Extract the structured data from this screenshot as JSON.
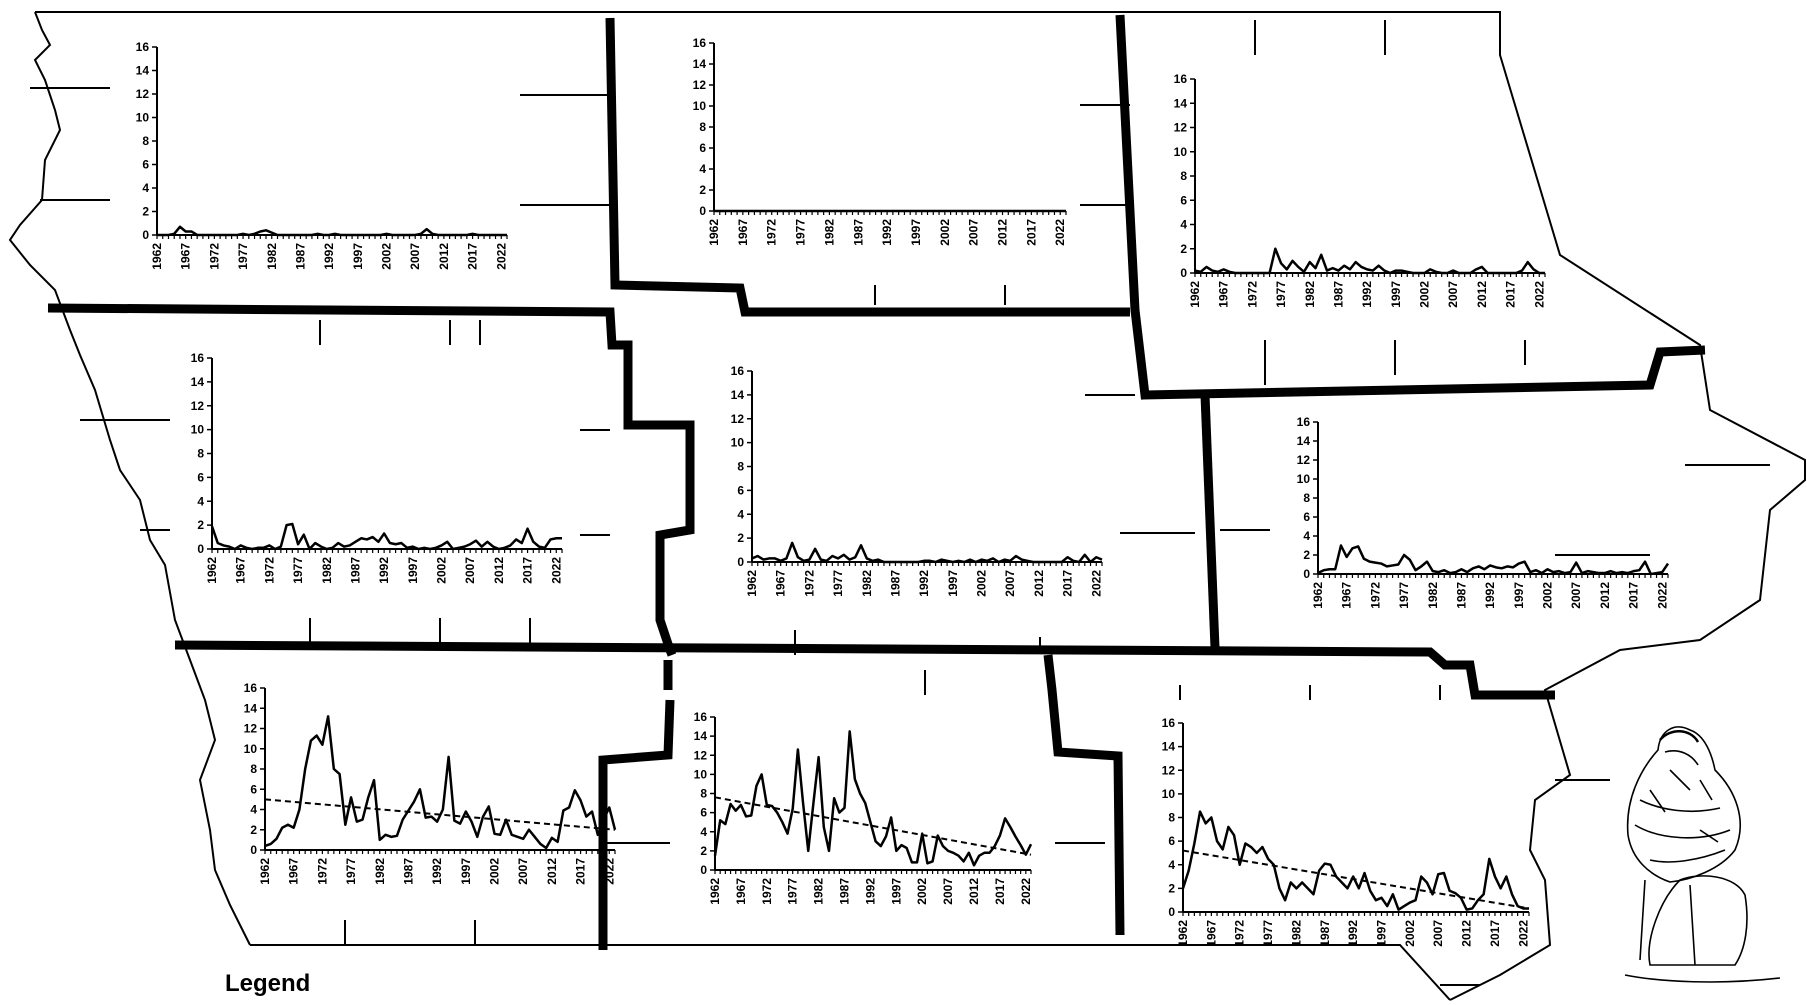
{
  "legend": {
    "label": "Legend"
  },
  "chart_data": [
    {
      "id": "northwest",
      "type": "line",
      "xlim": [
        1962,
        2023
      ],
      "ylim": [
        0,
        16
      ],
      "yticks": [
        0,
        2,
        4,
        6,
        8,
        10,
        12,
        14,
        16
      ],
      "xticks": [
        "1962",
        "1967",
        "1972",
        "1977",
        "1982",
        "1987",
        "1992",
        "1997",
        "2002",
        "2007",
        "2012",
        "2017",
        "2022"
      ],
      "x": [
        1962,
        1963,
        1964,
        1965,
        1966,
        1967,
        1968,
        1969,
        1970,
        1971,
        1972,
        1973,
        1974,
        1975,
        1976,
        1977,
        1978,
        1979,
        1980,
        1981,
        1982,
        1983,
        1984,
        1985,
        1986,
        1987,
        1988,
        1989,
        1990,
        1991,
        1992,
        1993,
        1994,
        1995,
        1996,
        1997,
        1998,
        1999,
        2000,
        2001,
        2002,
        2003,
        2004,
        2005,
        2006,
        2007,
        2008,
        2009,
        2010,
        2011,
        2012,
        2013,
        2014,
        2015,
        2016,
        2017,
        2018,
        2019,
        2020,
        2021,
        2022,
        2023
      ],
      "values": [
        0,
        0,
        0,
        0.1,
        0.7,
        0.3,
        0.3,
        0,
        0,
        0,
        0,
        0,
        0,
        0,
        0,
        0.1,
        0,
        0.1,
        0.3,
        0.4,
        0.2,
        0,
        0,
        0,
        0,
        0,
        0,
        0,
        0.1,
        0,
        0,
        0.1,
        0,
        0,
        0,
        0,
        0,
        0,
        0,
        0,
        0.1,
        0,
        0,
        0,
        0,
        0,
        0.1,
        0.5,
        0.1,
        0,
        0,
        0,
        0,
        0,
        0,
        0.1,
        0,
        0,
        0,
        0,
        0,
        0
      ]
    },
    {
      "id": "north-central",
      "type": "line",
      "xlim": [
        1962,
        2023
      ],
      "ylim": [
        0,
        16
      ],
      "yticks": [
        0,
        2,
        4,
        6,
        8,
        10,
        12,
        14,
        16
      ],
      "xticks": [
        "1962",
        "1967",
        "1972",
        "1977",
        "1982",
        "1987",
        "1992",
        "1997",
        "2002",
        "2007",
        "2012",
        "2017",
        "2022"
      ],
      "x": [
        1962,
        2023
      ],
      "values": [
        0,
        0
      ]
    },
    {
      "id": "northeast",
      "type": "line",
      "xlim": [
        1962,
        2023
      ],
      "ylim": [
        0,
        16
      ],
      "yticks": [
        0,
        2,
        4,
        6,
        8,
        10,
        12,
        14,
        16
      ],
      "xticks": [
        "1962",
        "1967",
        "1972",
        "1977",
        "1982",
        "1987",
        "1992",
        "1997",
        "2002",
        "2007",
        "2012",
        "2017",
        "2022"
      ],
      "x": [
        1962,
        1963,
        1964,
        1965,
        1966,
        1967,
        1968,
        1969,
        1970,
        1971,
        1972,
        1973,
        1974,
        1975,
        1976,
        1977,
        1978,
        1979,
        1980,
        1981,
        1982,
        1983,
        1984,
        1985,
        1986,
        1987,
        1988,
        1989,
        1990,
        1991,
        1992,
        1993,
        1994,
        1995,
        1996,
        1997,
        1998,
        1999,
        2000,
        2001,
        2002,
        2003,
        2004,
        2005,
        2006,
        2007,
        2008,
        2009,
        2010,
        2011,
        2012,
        2013,
        2014,
        2015,
        2016,
        2017,
        2018,
        2019,
        2020,
        2021,
        2022,
        2023
      ],
      "values": [
        0.2,
        0.1,
        0.5,
        0.2,
        0.1,
        0.3,
        0.1,
        0,
        0,
        0,
        0,
        0,
        0,
        0,
        2.0,
        0.8,
        0.3,
        1.0,
        0.5,
        0.1,
        0.9,
        0.4,
        1.5,
        0.2,
        0.4,
        0.2,
        0.6,
        0.3,
        0.9,
        0.5,
        0.3,
        0.2,
        0.6,
        0.2,
        0,
        0.2,
        0.2,
        0.1,
        0,
        0,
        0,
        0.3,
        0.1,
        0,
        0,
        0.2,
        0,
        0,
        0,
        0.3,
        0.5,
        0,
        0,
        0,
        0,
        0,
        0,
        0.2,
        0.9,
        0.3,
        0,
        0
      ]
    },
    {
      "id": "west-central",
      "type": "line",
      "xlim": [
        1962,
        2023
      ],
      "ylim": [
        0,
        16
      ],
      "yticks": [
        0,
        2,
        4,
        6,
        8,
        10,
        12,
        14,
        16
      ],
      "xticks": [
        "1962",
        "1967",
        "1972",
        "1977",
        "1982",
        "1987",
        "1992",
        "1997",
        "2002",
        "2007",
        "2012",
        "2017",
        "2022"
      ],
      "x": [
        1962,
        1963,
        1964,
        1965,
        1966,
        1967,
        1968,
        1969,
        1970,
        1971,
        1972,
        1973,
        1974,
        1975,
        1976,
        1977,
        1978,
        1979,
        1980,
        1981,
        1982,
        1983,
        1984,
        1985,
        1986,
        1987,
        1988,
        1989,
        1990,
        1991,
        1992,
        1993,
        1994,
        1995,
        1996,
        1997,
        1998,
        1999,
        2000,
        2001,
        2002,
        2003,
        2004,
        2005,
        2006,
        2007,
        2008,
        2009,
        2010,
        2011,
        2012,
        2013,
        2014,
        2015,
        2016,
        2017,
        2018,
        2019,
        2020,
        2021,
        2022,
        2023
      ],
      "values": [
        1.9,
        0.5,
        0.3,
        0.2,
        0,
        0.3,
        0.1,
        0,
        0.1,
        0.1,
        0.3,
        0,
        0.2,
        2.0,
        2.1,
        0.4,
        1.2,
        0,
        0.5,
        0.2,
        0,
        0.1,
        0.5,
        0.2,
        0.3,
        0.6,
        0.9,
        0.8,
        1.0,
        0.6,
        1.3,
        0.5,
        0.4,
        0.5,
        0.1,
        0.2,
        0,
        0.1,
        0,
        0.1,
        0.3,
        0.6,
        0,
        0.1,
        0.2,
        0.4,
        0.7,
        0.2,
        0.6,
        0.2,
        0,
        0.1,
        0.3,
        0.8,
        0.5,
        1.7,
        0.6,
        0.2,
        0.1,
        0.8,
        0.9,
        0.9
      ]
    },
    {
      "id": "central",
      "type": "line",
      "xlim": [
        1962,
        2023
      ],
      "ylim": [
        0,
        16
      ],
      "yticks": [
        0,
        2,
        4,
        6,
        8,
        10,
        12,
        14,
        16
      ],
      "xticks": [
        "1962",
        "1967",
        "1972",
        "1977",
        "1982",
        "1987",
        "1992",
        "1997",
        "2002",
        "2007",
        "2012",
        "2017",
        "2022"
      ],
      "x": [
        1962,
        1963,
        1964,
        1965,
        1966,
        1967,
        1968,
        1969,
        1970,
        1971,
        1972,
        1973,
        1974,
        1975,
        1976,
        1977,
        1978,
        1979,
        1980,
        1981,
        1982,
        1983,
        1984,
        1985,
        1986,
        1987,
        1988,
        1989,
        1990,
        1991,
        1992,
        1993,
        1994,
        1995,
        1996,
        1997,
        1998,
        1999,
        2000,
        2001,
        2002,
        2003,
        2004,
        2005,
        2006,
        2007,
        2008,
        2009,
        2010,
        2011,
        2012,
        2013,
        2014,
        2015,
        2016,
        2017,
        2018,
        2019,
        2020,
        2021,
        2022,
        2023
      ],
      "values": [
        0.3,
        0.5,
        0.2,
        0.3,
        0.3,
        0.1,
        0.3,
        1.6,
        0.4,
        0.1,
        0.2,
        1.1,
        0.2,
        0.1,
        0.5,
        0.3,
        0.6,
        0.2,
        0.4,
        1.4,
        0.3,
        0.1,
        0.2,
        0,
        0,
        0,
        0,
        0,
        0,
        0,
        0.1,
        0.1,
        0,
        0.2,
        0.1,
        0,
        0.1,
        0,
        0.2,
        0,
        0.2,
        0.1,
        0.3,
        0,
        0.2,
        0.1,
        0.5,
        0.2,
        0.1,
        0,
        0,
        0,
        0,
        0,
        0,
        0.4,
        0.1,
        0,
        0.6,
        0,
        0.4,
        0.2
      ]
    },
    {
      "id": "east-central",
      "type": "line",
      "xlim": [
        1962,
        2023
      ],
      "ylim": [
        0,
        16
      ],
      "yticks": [
        0,
        2,
        4,
        6,
        8,
        10,
        12,
        14,
        16
      ],
      "xticks": [
        "1962",
        "1967",
        "1972",
        "1977",
        "1982",
        "1987",
        "1992",
        "1997",
        "2002",
        "2007",
        "2012",
        "2017",
        "2022"
      ],
      "x": [
        1962,
        1963,
        1964,
        1965,
        1966,
        1967,
        1968,
        1969,
        1970,
        1971,
        1972,
        1973,
        1974,
        1975,
        1976,
        1977,
        1978,
        1979,
        1980,
        1981,
        1982,
        1983,
        1984,
        1985,
        1986,
        1987,
        1988,
        1989,
        1990,
        1991,
        1992,
        1993,
        1994,
        1995,
        1996,
        1997,
        1998,
        1999,
        2000,
        2001,
        2002,
        2003,
        2004,
        2005,
        2006,
        2007,
        2008,
        2009,
        2010,
        2011,
        2012,
        2013,
        2014,
        2015,
        2016,
        2017,
        2018,
        2019,
        2020,
        2021,
        2022,
        2023
      ],
      "values": [
        0.1,
        0.4,
        0.5,
        0.5,
        3.0,
        1.8,
        2.7,
        2.9,
        1.6,
        1.3,
        1.2,
        1.1,
        0.8,
        0.9,
        1.0,
        2.0,
        1.5,
        0.4,
        0.8,
        1.3,
        0.3,
        0.2,
        0.4,
        0.1,
        0.2,
        0.5,
        0.2,
        0.6,
        0.8,
        0.5,
        0.9,
        0.7,
        0.6,
        0.8,
        0.7,
        1.1,
        1.3,
        0.2,
        0.4,
        0.1,
        0.5,
        0.2,
        0.3,
        0.1,
        0.2,
        1.2,
        0.1,
        0.3,
        0.2,
        0.1,
        0.1,
        0.3,
        0.1,
        0.2,
        0.1,
        0.3,
        0.4,
        1.3,
        0,
        0.1,
        0.2,
        1.1
      ]
    },
    {
      "id": "southwest",
      "type": "line",
      "xlim": [
        1962,
        2023
      ],
      "ylim": [
        0,
        16
      ],
      "yticks": [
        0,
        2,
        4,
        6,
        8,
        10,
        12,
        14,
        16
      ],
      "xticks": [
        "1962",
        "1967",
        "1972",
        "1977",
        "1982",
        "1987",
        "1992",
        "1997",
        "2002",
        "2007",
        "2012",
        "2017",
        "2022"
      ],
      "x": [
        1962,
        1963,
        1964,
        1965,
        1966,
        1967,
        1968,
        1969,
        1970,
        1971,
        1972,
        1973,
        1974,
        1975,
        1976,
        1977,
        1978,
        1979,
        1980,
        1981,
        1982,
        1983,
        1984,
        1985,
        1986,
        1987,
        1988,
        1989,
        1990,
        1991,
        1992,
        1993,
        1994,
        1995,
        1996,
        1997,
        1998,
        1999,
        2000,
        2001,
        2002,
        2003,
        2004,
        2005,
        2006,
        2007,
        2008,
        2009,
        2010,
        2011,
        2012,
        2013,
        2014,
        2015,
        2016,
        2017,
        2018,
        2019,
        2020,
        2021,
        2022,
        2023
      ],
      "values": [
        0.4,
        0.6,
        1.1,
        2.2,
        2.5,
        2.2,
        4.0,
        8.0,
        10.8,
        11.3,
        10.4,
        13.2,
        8.0,
        7.5,
        2.5,
        5.2,
        2.8,
        3.0,
        5.2,
        6.9,
        1.0,
        1.5,
        1.3,
        1.4,
        3.0,
        3.9,
        4.8,
        6.0,
        3.2,
        3.3,
        2.8,
        4.0,
        9.2,
        2.9,
        2.6,
        3.8,
        2.8,
        1.3,
        3.3,
        4.3,
        1.6,
        1.5,
        3.0,
        1.5,
        1.3,
        1.1,
        2.0,
        1.3,
        0.6,
        0.2,
        1.2,
        0.8,
        3.9,
        4.2,
        5.9,
        4.9,
        3.3,
        3.8,
        1.5,
        3.0,
        4.2,
        2.0
      ],
      "trend": {
        "style": "dashed",
        "values": [
          5.0,
          2.0
        ]
      }
    },
    {
      "id": "south-central",
      "type": "line",
      "xlim": [
        1962,
        2023
      ],
      "ylim": [
        0,
        16
      ],
      "yticks": [
        0,
        2,
        4,
        6,
        8,
        10,
        12,
        14,
        16
      ],
      "xticks": [
        "1962",
        "1967",
        "1972",
        "1977",
        "1982",
        "1987",
        "1992",
        "1997",
        "2002",
        "2007",
        "2012",
        "2017",
        "2022"
      ],
      "x": [
        1962,
        1963,
        1964,
        1965,
        1966,
        1967,
        1968,
        1969,
        1970,
        1971,
        1972,
        1973,
        1974,
        1975,
        1976,
        1977,
        1978,
        1979,
        1980,
        1981,
        1982,
        1983,
        1984,
        1985,
        1986,
        1987,
        1988,
        1989,
        1990,
        1991,
        1992,
        1993,
        1994,
        1995,
        1996,
        1997,
        1998,
        1999,
        2000,
        2001,
        2002,
        2003,
        2004,
        2005,
        2006,
        2007,
        2008,
        2009,
        2010,
        2011,
        2012,
        2013,
        2014,
        2015,
        2016,
        2017,
        2018,
        2019,
        2020,
        2021,
        2022,
        2023
      ],
      "values": [
        1.5,
        5.2,
        4.8,
        6.9,
        6.2,
        6.8,
        5.6,
        5.7,
        8.8,
        10.0,
        6.8,
        6.7,
        6.0,
        5.0,
        3.8,
        6.4,
        12.6,
        7.0,
        2.0,
        7.0,
        11.8,
        4.5,
        2.0,
        7.5,
        6.0,
        6.5,
        14.5,
        9.5,
        8.0,
        7.0,
        5.0,
        3.0,
        2.5,
        3.5,
        5.5,
        2.0,
        2.6,
        2.3,
        0.8,
        0.8,
        3.8,
        0.7,
        0.9,
        3.6,
        2.5,
        2.0,
        1.8,
        1.5,
        0.9,
        1.8,
        0.5,
        1.5,
        1.8,
        1.8,
        2.5,
        3.6,
        5.4,
        4.5,
        3.5,
        2.6,
        1.6,
        2.7
      ],
      "trend": {
        "style": "dashed",
        "values": [
          7.6,
          1.6
        ]
      }
    },
    {
      "id": "southeast",
      "type": "line",
      "xlim": [
        1962,
        2023
      ],
      "ylim": [
        0,
        16
      ],
      "yticks": [
        0,
        2,
        4,
        6,
        8,
        10,
        12,
        14,
        16
      ],
      "xticks": [
        "1962",
        "1967",
        "1972",
        "1977",
        "1982",
        "1987",
        "1992",
        "1997",
        "2002",
        "2007",
        "2012",
        "2017",
        "2022"
      ],
      "x": [
        1962,
        1963,
        1964,
        1965,
        1966,
        1967,
        1968,
        1969,
        1970,
        1971,
        1972,
        1973,
        1974,
        1975,
        1976,
        1977,
        1978,
        1979,
        1980,
        1981,
        1982,
        1983,
        1984,
        1985,
        1986,
        1987,
        1988,
        1989,
        1990,
        1991,
        1992,
        1993,
        1994,
        1995,
        1996,
        1997,
        1998,
        1999,
        2000,
        2001,
        2002,
        2003,
        2004,
        2005,
        2006,
        2007,
        2008,
        2009,
        2010,
        2011,
        2012,
        2013,
        2014,
        2015,
        2016,
        2017,
        2018,
        2019,
        2020,
        2021,
        2022,
        2023
      ],
      "values": [
        2.0,
        3.5,
        5.8,
        8.5,
        7.5,
        8.0,
        6.0,
        5.3,
        7.2,
        6.5,
        4.0,
        5.8,
        5.5,
        5.0,
        5.5,
        4.5,
        4.0,
        2.0,
        1.0,
        2.5,
        2.0,
        2.5,
        2.0,
        1.5,
        3.5,
        4.1,
        4.0,
        3.0,
        2.5,
        2.0,
        3.0,
        2.0,
        3.3,
        1.8,
        1.0,
        1.2,
        0.5,
        1.5,
        0.2,
        0.5,
        0.8,
        1.0,
        3.0,
        2.5,
        1.5,
        3.2,
        3.3,
        1.8,
        1.6,
        1.2,
        0.2,
        0.3,
        1.0,
        1.5,
        4.5,
        3.0,
        2.0,
        3.0,
        1.5,
        0.5,
        0.3,
        0.3
      ],
      "trend": {
        "style": "dashed",
        "values": [
          5.2,
          0.3
        ]
      }
    }
  ]
}
